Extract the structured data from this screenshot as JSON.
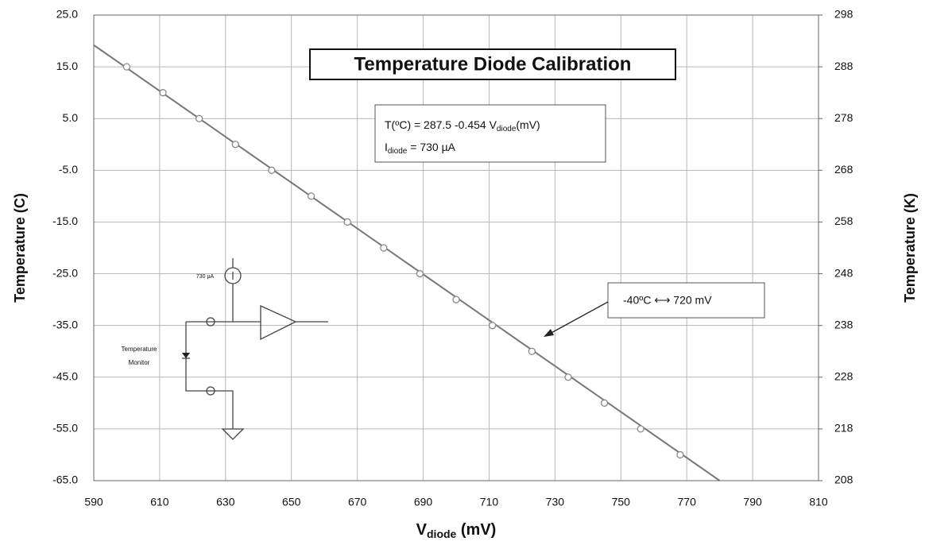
{
  "chart_data": {
    "type": "scatter",
    "title": "Temperature Diode Calibration",
    "y_label": "Temperature (C)",
    "y2_label": "Temperature (K)",
    "x_label": [
      "V",
      "diode",
      " (mV)"
    ],
    "equation": [
      "T(ºC)  = 287.5 -0.454 V",
      "diode",
      "(mV)"
    ],
    "current": [
      "I",
      "diode",
      " = 730 µA"
    ],
    "callout": "-40ºC ⟷ 720 mV",
    "circuit_source": "730 µA",
    "circuit_label": [
      "Temperature",
      "Monitor"
    ],
    "x": [
      600,
      611,
      622,
      633,
      644,
      656,
      667,
      678,
      689,
      700,
      711,
      723,
      734,
      745,
      756,
      768
    ],
    "values": [
      15,
      10,
      5,
      0,
      -5,
      -10,
      -15,
      -20,
      -25,
      -30,
      -35,
      -40,
      -45,
      -50,
      -55,
      -60
    ],
    "color": "#888888",
    "fit": {
      "x": [
        590,
        780
      ],
      "values": [
        19.2,
        -65
      ],
      "color": "#777777"
    },
    "xlim": [
      590,
      810
    ],
    "xticks": [
      590,
      610,
      630,
      650,
      670,
      690,
      710,
      730,
      750,
      770,
      790,
      810
    ],
    "ylim": [
      -65,
      25
    ],
    "yticks": [
      {
        "value": 25,
        "label": "25.0"
      },
      {
        "value": 15,
        "label": "15.0"
      },
      {
        "value": 5,
        "label": "5.0"
      },
      {
        "value": -5,
        "label": "-5.0"
      },
      {
        "value": -15,
        "label": "-15.0"
      },
      {
        "value": -25,
        "label": "-25.0"
      },
      {
        "value": -35,
        "label": "-35.0"
      },
      {
        "value": -45,
        "label": "-45.0"
      },
      {
        "value": -55,
        "label": "-55.0"
      },
      {
        "value": -65,
        "label": "-65.0"
      }
    ],
    "y2lim": [
      208,
      298
    ],
    "y2ticks": [
      298,
      288,
      278,
      268,
      258,
      248,
      238,
      228,
      218,
      208
    ],
    "grid": true
  }
}
